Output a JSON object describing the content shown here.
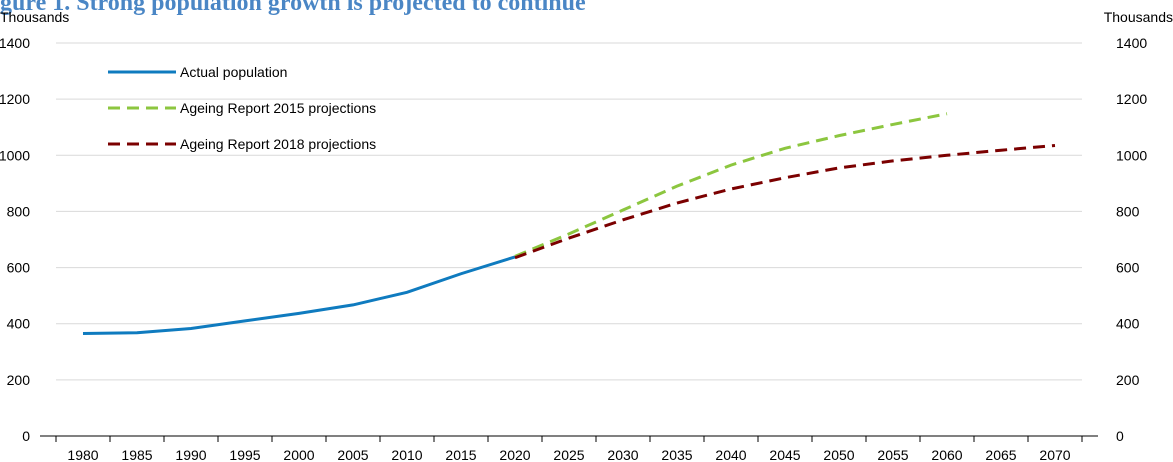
{
  "chart_data": {
    "type": "line",
    "title": "gure 1. Strong population growth is projected to continue",
    "y_label": "Thousands",
    "y2_label": "Thousands",
    "categories": [
      "1980",
      "1985",
      "1990",
      "1995",
      "2000",
      "2005",
      "2010",
      "2015",
      "2020",
      "2025",
      "2030",
      "2035",
      "2040",
      "2045",
      "2050",
      "2055",
      "2060",
      "2065",
      "2070"
    ],
    "series": [
      {
        "name": "Actual population",
        "color": "#0f7bbf",
        "dash": false,
        "values": [
          365,
          368,
          383,
          410,
          437,
          467,
          512,
          578,
          638,
          null,
          null,
          null,
          null,
          null,
          null,
          null,
          null,
          null,
          null
        ]
      },
      {
        "name": "Ageing Report 2015 projections",
        "color": "#8cc63f",
        "dash": true,
        "values": [
          null,
          null,
          null,
          null,
          null,
          null,
          null,
          null,
          640,
          720,
          805,
          890,
          965,
          1025,
          1070,
          1110,
          1148,
          null,
          null
        ]
      },
      {
        "name": "Ageing Report 2018 projections",
        "color": "#7b0000",
        "dash": true,
        "values": [
          null,
          null,
          null,
          null,
          null,
          null,
          null,
          null,
          635,
          705,
          770,
          830,
          880,
          920,
          955,
          980,
          1000,
          1018,
          1035
        ]
      }
    ],
    "ylim": [
      0,
      1400
    ],
    "yticks": [
      0,
      200,
      400,
      600,
      800,
      1000,
      1200,
      1400
    ],
    "y2lim": [
      0,
      1400
    ],
    "y2ticks": [
      0,
      200,
      400,
      600,
      800,
      1000,
      1200,
      1400
    ],
    "grid": true,
    "legend": "top-left"
  }
}
